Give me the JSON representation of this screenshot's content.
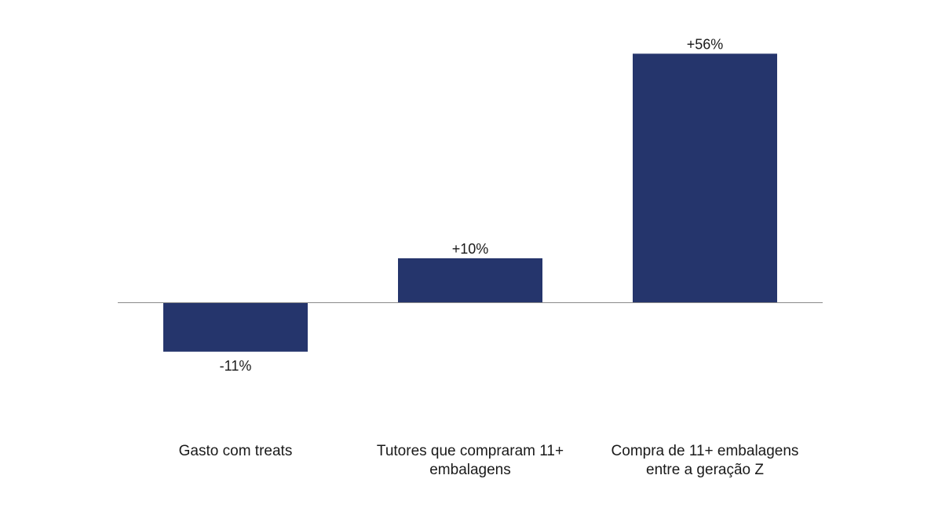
{
  "chart_data": {
    "type": "bar",
    "categories": [
      [
        "Gasto com treats"
      ],
      [
        "Tutores que compraram 11+",
        "embalagens"
      ],
      [
        "Compra de 11+ embalagens",
        "entre a geração Z"
      ]
    ],
    "values": [
      -11,
      10,
      56
    ],
    "data_labels": [
      "-11%",
      "+10%",
      "+56%"
    ],
    "ylim": [
      -21,
      62
    ],
    "grid": false,
    "legend": "none",
    "bar_color": "#25356c",
    "axis_color": "#8a8a8a"
  }
}
